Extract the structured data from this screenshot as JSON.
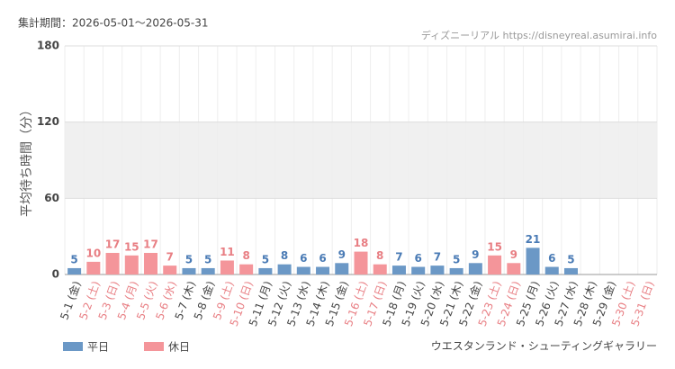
{
  "chart_data": {
    "type": "bar",
    "period": "集計期間：2026-05-01～2026-05-31",
    "source": "ディズニーリアル https://disneyreal.asumirai.info",
    "y_label": "平均待ち時間（分）",
    "footer": "ウエスタンランド・シューティングギャラリー",
    "categories": [
      "5-1 (金)",
      "5-2 (土)",
      "5-3 (日)",
      "5-4 (月)",
      "5-5 (火)",
      "5-6 (水)",
      "5-7 (木)",
      "5-8 (金)",
      "5-9 (土)",
      "5-10 (日)",
      "5-11 (月)",
      "5-12 (火)",
      "5-13 (水)",
      "5-14 (木)",
      "5-15 (金)",
      "5-16 (土)",
      "5-17 (日)",
      "5-18 (月)",
      "5-19 (火)",
      "5-20 (水)",
      "5-21 (木)",
      "5-22 (金)",
      "5-23 (土)",
      "5-24 (日)",
      "5-25 (月)",
      "5-26 (火)",
      "5-27 (水)",
      "5-28 (木)",
      "5-29 (金)",
      "5-30 (土)",
      "5-31 (日)"
    ],
    "label_colors": [
      "#444",
      "#e87e83",
      "#e87e83",
      "#e87e83",
      "#e87e83",
      "#e87e83",
      "#444",
      "#444",
      "#e87e83",
      "#e87e83",
      "#444",
      "#444",
      "#444",
      "#444",
      "#444",
      "#e87e83",
      "#e87e83",
      "#444",
      "#444",
      "#444",
      "#444",
      "#444",
      "#e87e83",
      "#e87e83",
      "#444",
      "#444",
      "#444",
      "#444",
      "#444",
      "#e87e83",
      "#e87e83"
    ],
    "series": [
      {
        "name": "平日",
        "color": "#6b98c6",
        "label_color": "#4a7bb5",
        "values": [
          5,
          null,
          null,
          null,
          null,
          null,
          5,
          5,
          null,
          null,
          5,
          8,
          6,
          6,
          9,
          null,
          null,
          7,
          6,
          7,
          5,
          9,
          null,
          null,
          21,
          6,
          5,
          null,
          null,
          null,
          null
        ]
      },
      {
        "name": "休日",
        "color": "#f4959a",
        "label_color": "#e87e83",
        "values": [
          null,
          10,
          17,
          15,
          17,
          7,
          null,
          null,
          11,
          8,
          null,
          null,
          null,
          null,
          null,
          18,
          8,
          null,
          null,
          null,
          null,
          null,
          15,
          9,
          null,
          null,
          null,
          null,
          null,
          null,
          null
        ]
      }
    ],
    "ylim": [
      0,
      180
    ],
    "yticks": [
      0,
      60,
      120,
      180
    ],
    "band": [
      60,
      120
    ],
    "grid": true
  }
}
